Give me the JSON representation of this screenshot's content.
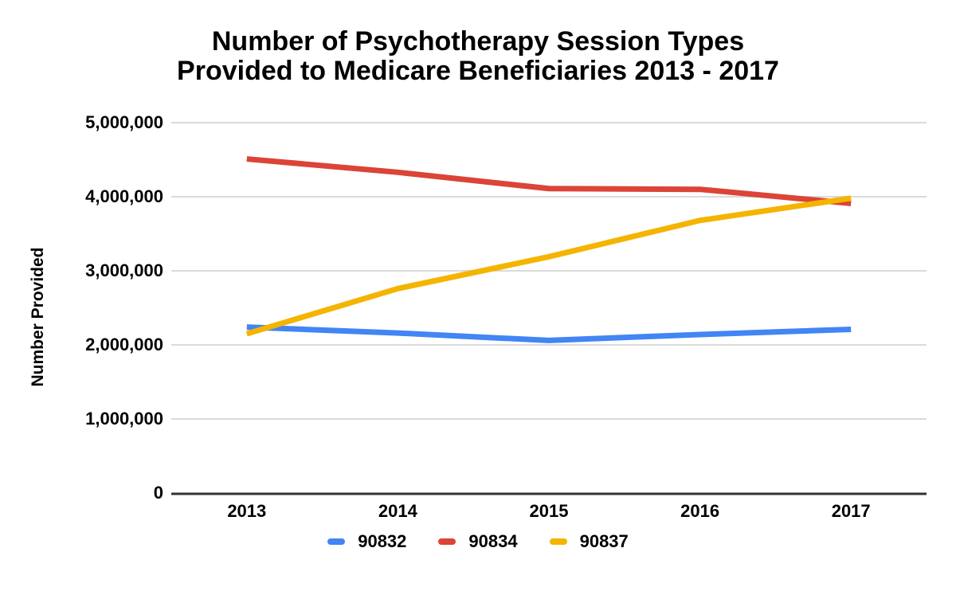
{
  "chart_data": {
    "type": "line",
    "title": "Number of Psychotherapy Session Types Provided to Medicare Beneficiaries 2013 - 2017",
    "title_lines": [
      "Number of Psychotherapy Session Types",
      "Provided to Medicare Beneficiaries 2013 - 2017"
    ],
    "ylabel": "Number Provided",
    "xlabel": "",
    "categories": [
      "2013",
      "2014",
      "2015",
      "2016",
      "2017"
    ],
    "series": [
      {
        "name": "90832",
        "color": "#4285F4",
        "values": [
          2240000,
          2160000,
          2060000,
          2140000,
          2210000
        ]
      },
      {
        "name": "90834",
        "color": "#DB4437",
        "values": [
          4510000,
          4330000,
          4110000,
          4100000,
          3910000
        ]
      },
      {
        "name": "90837",
        "color": "#F4B400",
        "values": [
          2150000,
          2760000,
          3190000,
          3680000,
          3980000
        ]
      }
    ],
    "ylim": [
      0,
      5000000
    ],
    "ytick_interval": 1000000,
    "ytick_labels": [
      "0",
      "1,000,000",
      "2,000,000",
      "3,000,000",
      "4,000,000",
      "5,000,000"
    ],
    "grid": true,
    "legend_position": "bottom",
    "colors": {
      "grid": "#DADADA",
      "axis_baseline": "#333333",
      "text": "#000000",
      "background": "#FFFFFF"
    }
  }
}
